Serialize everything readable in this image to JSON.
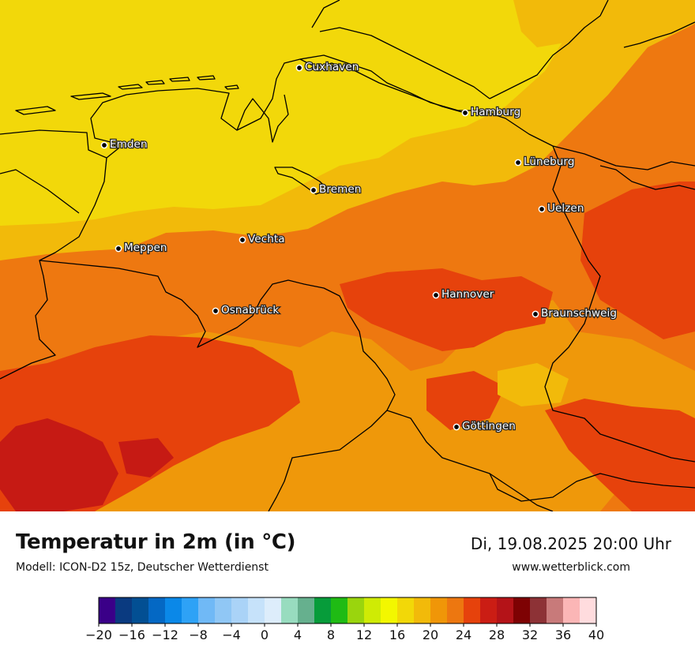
{
  "map": {
    "cities": [
      {
        "name": "Cuxhaven"
      },
      {
        "name": "Hamburg"
      },
      {
        "name": "Emden"
      },
      {
        "name": "Lüneburg"
      },
      {
        "name": "Bremen"
      },
      {
        "name": "Uelzen"
      },
      {
        "name": "Vechta"
      },
      {
        "name": "Meppen"
      },
      {
        "name": "Hannover"
      },
      {
        "name": "Osnabrück"
      },
      {
        "name": "Braunschweig"
      },
      {
        "name": "Göttingen"
      }
    ]
  },
  "footer": {
    "title": "Temperatur in 2m (in °C)",
    "subtitle": "Modell: ICON-D2 15z, Deutscher Wetterdienst",
    "datetime": "Di, 19.08.2025 20:00 Uhr",
    "website": "www.wetterblick.com"
  },
  "legend": {
    "tick_labels": [
      "−20",
      "−16",
      "−12",
      "−8",
      "−4",
      "0",
      "4",
      "8",
      "12",
      "16",
      "20",
      "24",
      "28",
      "32",
      "36",
      "40"
    ],
    "colors": [
      "#3a0088",
      "#0a3a80",
      "#024f93",
      "#0468c4",
      "#0a88e8",
      "#2ea2f6",
      "#70b9f6",
      "#90c7f5",
      "#aad3f7",
      "#c6e2fa",
      "#ddedfb",
      "#98dcbf",
      "#66b08e",
      "#079c3a",
      "#1fbb14",
      "#9ad50d",
      "#cfeb05",
      "#f3f700",
      "#f2d808",
      "#f2ba0a",
      "#f09608",
      "#ed7710",
      "#e6420c",
      "#cb1d14",
      "#b41318",
      "#7e0203",
      "#8d3236",
      "#c87a7a",
      "#fbb6b6",
      "#ffdcde"
    ]
  },
  "colors": {
    "yellow": "#f2d80a",
    "light_orange": "#f2ba0a",
    "orange": "#ef980a",
    "dark_orange": "#ee7810",
    "red_orange": "#e6420c",
    "red": "#c61a14"
  }
}
